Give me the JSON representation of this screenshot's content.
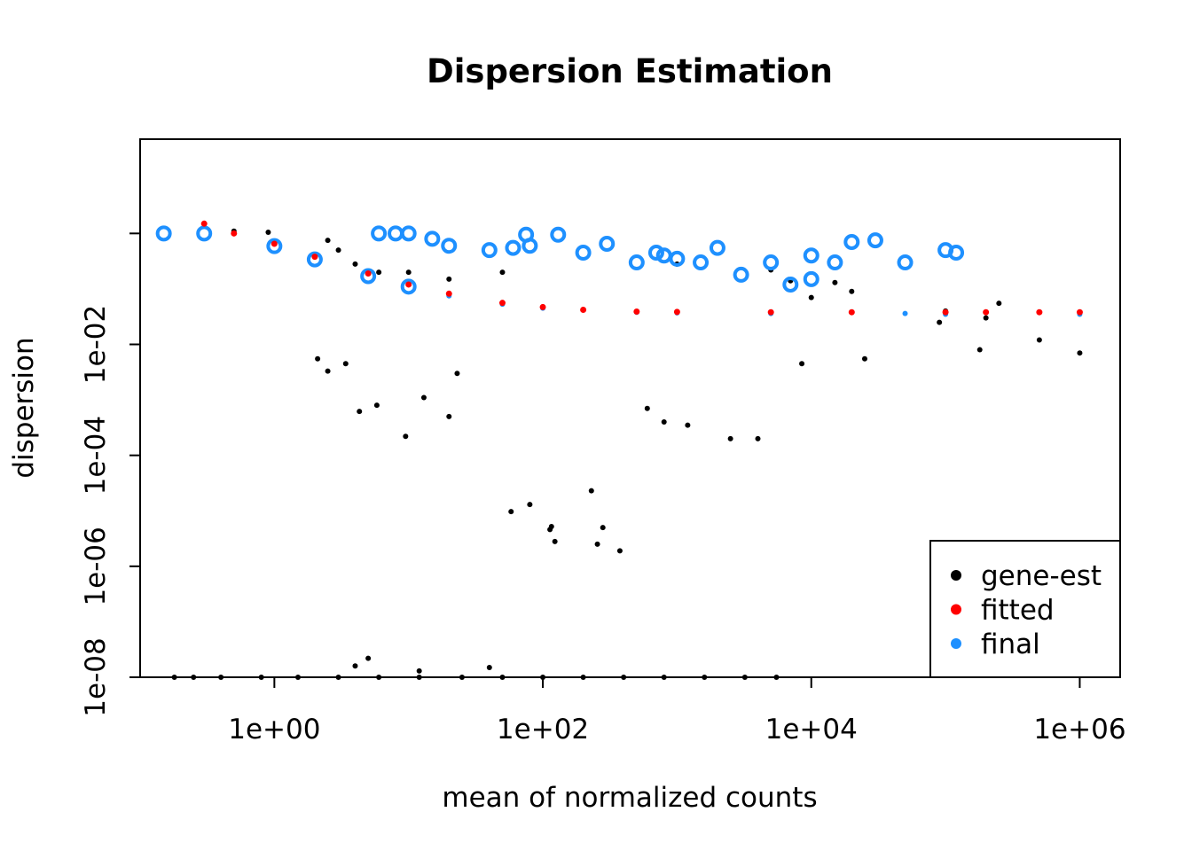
{
  "chart_data": {
    "type": "scatter",
    "title": "Dispersion Estimation",
    "xlabel": "mean of normalized counts",
    "ylabel": "dispersion",
    "x_scale": "log10",
    "y_scale": "log10",
    "xlim": [
      0.1,
      2000000
    ],
    "ylim": [
      1e-08,
      50
    ],
    "x_ticks": [
      {
        "value": 1,
        "label": "1e+00"
      },
      {
        "value": 100,
        "label": "1e+02"
      },
      {
        "value": 10000,
        "label": "1e+04"
      },
      {
        "value": 1000000,
        "label": "1e+06"
      }
    ],
    "y_ticks": [
      {
        "value": 1e-08,
        "label": "1e-08"
      },
      {
        "value": 1e-06,
        "label": "1e-06"
      },
      {
        "value": 0.0001,
        "label": "1e-04"
      },
      {
        "value": 0.01,
        "label": "1e-02"
      },
      {
        "value": 1,
        "label": ""
      }
    ],
    "grid": false,
    "legend": {
      "placement": "bottom-right",
      "entries": [
        {
          "label": "gene-est",
          "color": "#000000"
        },
        {
          "label": "fitted",
          "color": "#ff0000"
        },
        {
          "label": "final",
          "color": "#1e90ff"
        }
      ]
    },
    "series": [
      {
        "name": "gene-est",
        "color": "#000000",
        "points": [
          [
            0.18,
            1e-08
          ],
          [
            0.25,
            1e-08
          ],
          [
            0.4,
            1e-08
          ],
          [
            0.8,
            1e-08
          ],
          [
            1.5,
            1e-08
          ],
          [
            3,
            1e-08
          ],
          [
            6,
            1e-08
          ],
          [
            12,
            1e-08
          ],
          [
            25,
            1e-08
          ],
          [
            50,
            1e-08
          ],
          [
            100,
            1e-08
          ],
          [
            200,
            1e-08
          ],
          [
            400,
            1e-08
          ],
          [
            800,
            1e-08
          ],
          [
            1600,
            1e-08
          ],
          [
            3200,
            1e-08
          ],
          [
            5500,
            1e-08
          ],
          [
            5,
            2.2e-08
          ],
          [
            4,
            1.6e-08
          ],
          [
            12,
            1.3e-08
          ],
          [
            40,
            1.5e-08
          ],
          [
            2.1,
            0.0055
          ],
          [
            3.4,
            0.0045
          ],
          [
            2.5,
            0.0033
          ],
          [
            4.3,
            0.00062
          ],
          [
            5.8,
            0.0008
          ],
          [
            9.5,
            0.00022
          ],
          [
            13,
            0.0011
          ],
          [
            20,
            0.0005
          ],
          [
            23,
            0.003
          ],
          [
            600,
            0.0007
          ],
          [
            800,
            0.0004
          ],
          [
            1200,
            0.00035
          ],
          [
            2500,
            0.0002
          ],
          [
            4000,
            0.0002
          ],
          [
            8500,
            0.0045
          ],
          [
            25000,
            0.0055
          ],
          [
            230,
            2.3e-05
          ],
          [
            280,
            5e-06
          ],
          [
            255,
            2.5e-06
          ],
          [
            375,
            1.9e-06
          ],
          [
            58,
            9.7e-06
          ],
          [
            80,
            1.3e-05
          ],
          [
            113,
            4.6e-06
          ],
          [
            116,
            5.2e-06
          ],
          [
            123,
            2.8e-06
          ],
          [
            90000,
            0.025
          ],
          [
            100000,
            0.04
          ],
          [
            200000,
            0.03
          ],
          [
            250000,
            0.055
          ],
          [
            500000,
            0.012
          ],
          [
            1000000,
            0.007
          ],
          [
            180000,
            0.008
          ],
          [
            0.5,
            1.1
          ],
          [
            0.9,
            1.05
          ],
          [
            2.5,
            0.75
          ],
          [
            3,
            0.5
          ],
          [
            4,
            0.28
          ],
          [
            6,
            0.2
          ],
          [
            10,
            0.2
          ],
          [
            20,
            0.15
          ],
          [
            50,
            0.2
          ],
          [
            1000,
            0.28
          ],
          [
            5000,
            0.22
          ],
          [
            10000,
            0.07
          ],
          [
            20000,
            0.09
          ],
          [
            15000,
            0.13
          ],
          [
            7000,
            0.14
          ]
        ]
      },
      {
        "name": "fitted",
        "color": "#ff0000",
        "points": [
          [
            0.3,
            1.5
          ],
          [
            0.5,
            1.0
          ],
          [
            1,
            0.65
          ],
          [
            2,
            0.38
          ],
          [
            5,
            0.19
          ],
          [
            10,
            0.12
          ],
          [
            20,
            0.082
          ],
          [
            50,
            0.056
          ],
          [
            100,
            0.047
          ],
          [
            200,
            0.042
          ],
          [
            500,
            0.039
          ],
          [
            1000,
            0.0385
          ],
          [
            5000,
            0.038
          ],
          [
            20000,
            0.038
          ],
          [
            100000,
            0.038
          ],
          [
            200000,
            0.038
          ],
          [
            500000,
            0.038
          ],
          [
            1000000,
            0.038
          ]
        ]
      },
      {
        "name": "final",
        "color": "#1e90ff",
        "points": [
          [
            0.15,
            1.0
          ],
          [
            0.3,
            1.0
          ],
          [
            1,
            0.59
          ],
          [
            2,
            0.34
          ],
          [
            5,
            0.17
          ],
          [
            10,
            0.11
          ],
          [
            20,
            0.075
          ],
          [
            50,
            0.053
          ],
          [
            100,
            0.045
          ],
          [
            500,
            0.038
          ],
          [
            1000,
            0.037
          ],
          [
            5000,
            0.036
          ],
          [
            50000,
            0.036
          ],
          [
            100000,
            0.035
          ],
          [
            1000000,
            0.035
          ],
          [
            6,
            1.0
          ],
          [
            8,
            1.0
          ],
          [
            10,
            1.0
          ],
          [
            15,
            0.8
          ],
          [
            20,
            0.6
          ],
          [
            40,
            0.5
          ],
          [
            60,
            0.55
          ],
          [
            75,
            0.95
          ],
          [
            80,
            0.6
          ],
          [
            130,
            0.95
          ],
          [
            200,
            0.45
          ],
          [
            300,
            0.65
          ],
          [
            500,
            0.3
          ],
          [
            700,
            0.45
          ],
          [
            800,
            0.4
          ],
          [
            1000,
            0.35
          ],
          [
            1500,
            0.3
          ],
          [
            2000,
            0.55
          ],
          [
            5000,
            0.3
          ],
          [
            10000,
            0.4
          ],
          [
            15000,
            0.3
          ],
          [
            20000,
            0.7
          ],
          [
            30000,
            0.75
          ],
          [
            50000,
            0.3
          ],
          [
            100000,
            0.5
          ],
          [
            120000,
            0.45
          ],
          [
            3000,
            0.18
          ],
          [
            7000,
            0.12
          ],
          [
            10000,
            0.15
          ]
        ]
      }
    ]
  }
}
